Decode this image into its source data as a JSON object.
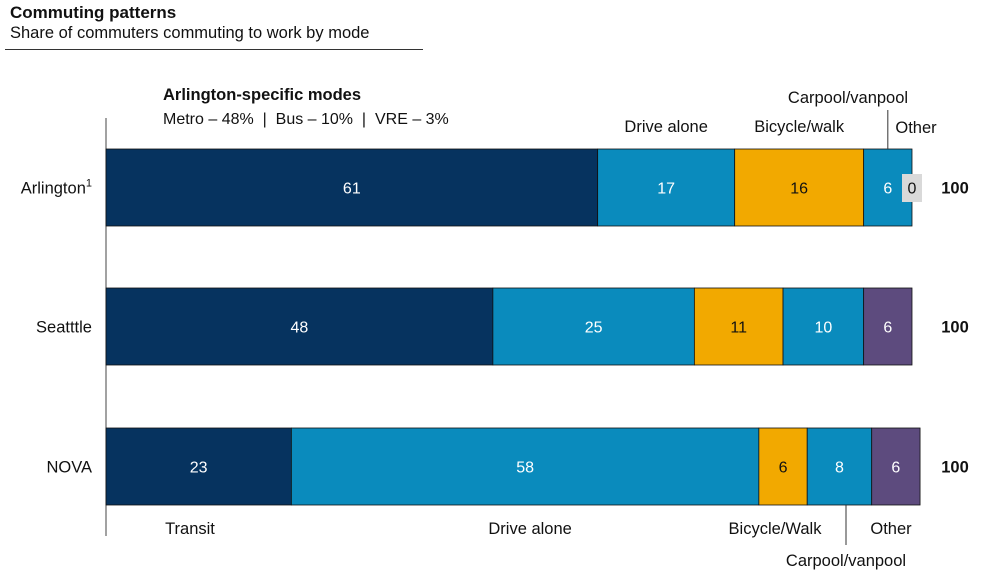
{
  "header": {
    "title": "Commuting patterns",
    "subtitle": "Share of commuters commuting to work by mode"
  },
  "note": {
    "heading": "Arlington-specific modes",
    "text": "Metro – 48%  |  Bus – 10%  |  VRE – 3%"
  },
  "chart_data": {
    "type": "bar",
    "orientation": "horizontal",
    "stacked": true,
    "categories": [
      "Arlington",
      "Seatttle",
      "NOVA"
    ],
    "category_superscripts": [
      "1",
      "",
      ""
    ],
    "series": [
      {
        "name": "Transit",
        "values": [
          61,
          48,
          23
        ],
        "color": "#06335f"
      },
      {
        "name": "Drive alone",
        "values": [
          17,
          25,
          58
        ],
        "color": "#0a8bbd"
      },
      {
        "name": "Bicycle/walk",
        "values": [
          16,
          11,
          6
        ],
        "color": "#f2a900"
      },
      {
        "name": "Carpool/vanpool",
        "values": [
          6,
          10,
          8
        ],
        "color": "#0a8bbd"
      },
      {
        "name": "Other",
        "values": [
          0,
          6,
          6
        ],
        "color": "#5d4b7e"
      }
    ],
    "other_zero_color": "#d9d9d9",
    "totals": [
      100,
      100,
      100
    ],
    "top_labels": [
      "Drive alone",
      "Bicycle/walk",
      "Carpool/vanpool",
      "Other"
    ],
    "bottom_labels": [
      "Transit",
      "Drive alone",
      "Bicycle/Walk",
      "Carpool/vanpool",
      "Other"
    ],
    "grid": false,
    "legend": "none",
    "xlim": [
      0,
      100
    ]
  }
}
